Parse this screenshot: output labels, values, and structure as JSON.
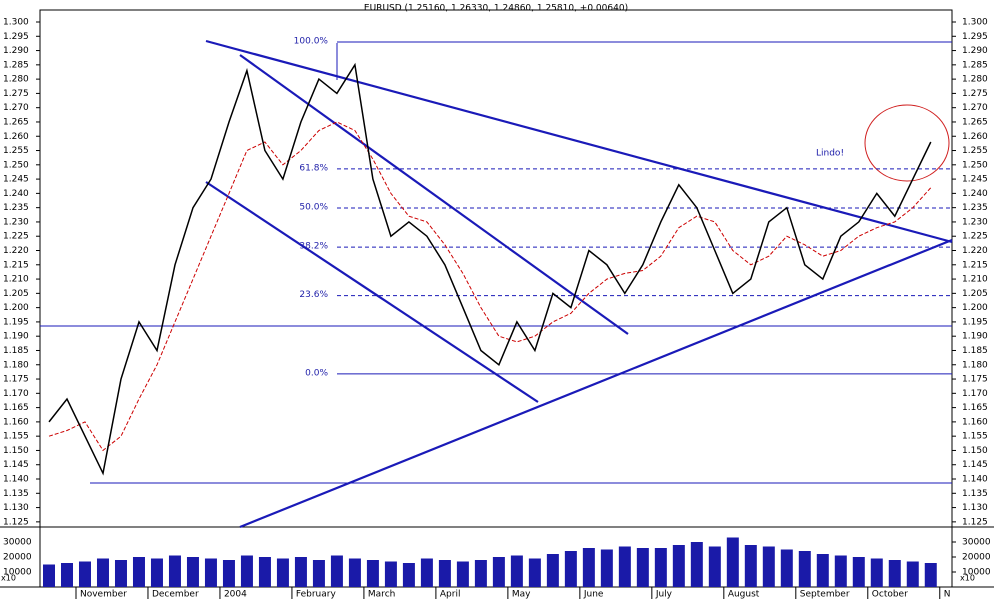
{
  "chart_data": {
    "type": "line",
    "title": "EURUSD (1.25160, 1.26330, 1.24860, 1.25810, +0.00640)",
    "ylim": [
      1.1232,
      1.3042
    ],
    "yticks": [
      {
        "value": 1.125,
        "label": "1.125"
      },
      {
        "value": 1.13,
        "label": "1.130"
      },
      {
        "value": 1.135,
        "label": "1.135"
      },
      {
        "value": 1.14,
        "label": "1.140"
      },
      {
        "value": 1.145,
        "label": "1.145"
      },
      {
        "value": 1.15,
        "label": "1.150"
      },
      {
        "value": 1.155,
        "label": "1.155"
      },
      {
        "value": 1.16,
        "label": "1.160"
      },
      {
        "value": 1.165,
        "label": "1.165"
      },
      {
        "value": 1.17,
        "label": "1.170"
      },
      {
        "value": 1.175,
        "label": "1.175"
      },
      {
        "value": 1.18,
        "label": "1.180"
      },
      {
        "value": 1.185,
        "label": "1.185"
      },
      {
        "value": 1.19,
        "label": "1.190"
      },
      {
        "value": 1.195,
        "label": "1.195"
      },
      {
        "value": 1.2,
        "label": "1.200"
      },
      {
        "value": 1.205,
        "label": "1.205"
      },
      {
        "value": 1.21,
        "label": "1.210"
      },
      {
        "value": 1.215,
        "label": "1.215"
      },
      {
        "value": 1.22,
        "label": "1.220"
      },
      {
        "value": 1.225,
        "label": "1.225"
      },
      {
        "value": 1.23,
        "label": "1.230"
      },
      {
        "value": 1.235,
        "label": "1.235"
      },
      {
        "value": 1.24,
        "label": "1.240"
      },
      {
        "value": 1.245,
        "label": "1.245"
      },
      {
        "value": 1.25,
        "label": "1.250"
      },
      {
        "value": 1.255,
        "label": "1.255"
      },
      {
        "value": 1.26,
        "label": "1.260"
      },
      {
        "value": 1.265,
        "label": "1.265"
      },
      {
        "value": 1.27,
        "label": "1.270"
      },
      {
        "value": 1.275,
        "label": "1.275"
      },
      {
        "value": 1.28,
        "label": "1.280"
      },
      {
        "value": 1.285,
        "label": "1.285"
      },
      {
        "value": 1.29,
        "label": "1.290"
      },
      {
        "value": 1.295,
        "label": "1.295"
      },
      {
        "value": 1.3,
        "label": "1.300"
      }
    ],
    "price_color": "#000000",
    "ma_color": "#cc0000",
    "volume_color": "#1a1aa8",
    "months": [
      {
        "label": null,
        "close": [
          1.16,
          1.168
        ],
        "ma": [
          1.155,
          1.157
        ],
        "volume": [
          15000,
          16000
        ]
      },
      {
        "label": "November",
        "close": [
          1.155,
          1.142,
          1.175,
          1.195
        ],
        "ma": [
          1.16,
          1.15,
          1.155,
          1.168
        ],
        "volume": [
          17000,
          19000,
          18000,
          20000
        ]
      },
      {
        "label": "December",
        "close": [
          1.185,
          1.215,
          1.235,
          1.245
        ],
        "ma": [
          1.18,
          1.195,
          1.21,
          1.225
        ],
        "volume": [
          19000,
          21000,
          20000,
          19000
        ]
      },
      {
        "label": "2004",
        "close": [
          1.265,
          1.283,
          1.255,
          1.245
        ],
        "ma": [
          1.24,
          1.255,
          1.258,
          1.25
        ],
        "volume": [
          18000,
          21000,
          20000,
          19000
        ]
      },
      {
        "label": "February",
        "close": [
          1.265,
          1.28,
          1.275,
          1.285
        ],
        "ma": [
          1.255,
          1.262,
          1.265,
          1.262
        ],
        "volume": [
          20000,
          18000,
          21000,
          19000
        ]
      },
      {
        "label": "March",
        "close": [
          1.245,
          1.225,
          1.23,
          1.225
        ],
        "ma": [
          1.252,
          1.24,
          1.232,
          1.23
        ],
        "volume": [
          18000,
          17000,
          16000,
          19000
        ]
      },
      {
        "label": "April",
        "close": [
          1.215,
          1.2,
          1.185,
          1.18
        ],
        "ma": [
          1.222,
          1.212,
          1.2,
          1.19
        ],
        "volume": [
          18000,
          17000,
          18000,
          20000
        ]
      },
      {
        "label": "May",
        "close": [
          1.195,
          1.185,
          1.205,
          1.2
        ],
        "ma": [
          1.188,
          1.19,
          1.195,
          1.198
        ],
        "volume": [
          21000,
          19000,
          22000,
          24000
        ]
      },
      {
        "label": "June",
        "close": [
          1.22,
          1.215,
          1.205,
          1.215
        ],
        "ma": [
          1.205,
          1.21,
          1.212,
          1.213
        ],
        "volume": [
          26000,
          25000,
          27000,
          26000
        ]
      },
      {
        "label": "July",
        "close": [
          1.23,
          1.243,
          1.235,
          1.22
        ],
        "ma": [
          1.218,
          1.228,
          1.232,
          1.23
        ],
        "volume": [
          26000,
          28000,
          30000,
          27000
        ]
      },
      {
        "label": "August",
        "close": [
          1.205,
          1.21,
          1.23,
          1.235
        ],
        "ma": [
          1.22,
          1.215,
          1.218,
          1.225
        ],
        "volume": [
          33000,
          28000,
          27000,
          25000
        ]
      },
      {
        "label": "September",
        "close": [
          1.215,
          1.21,
          1.225,
          1.23
        ],
        "ma": [
          1.222,
          1.218,
          1.22,
          1.225
        ],
        "volume": [
          24000,
          22000,
          21000,
          20000
        ]
      },
      {
        "label": "October",
        "close": [
          1.24,
          1.232,
          1.245,
          1.258
        ],
        "ma": [
          1.228,
          1.23,
          1.235,
          1.242
        ],
        "volume": [
          19000,
          18000,
          17000,
          16000
        ]
      },
      {
        "label": "N",
        "close": [],
        "ma": [],
        "volume": []
      }
    ],
    "volume_ylim": [
      0,
      38000
    ],
    "volume_yticks": [
      10000,
      20000,
      30000
    ],
    "volume_unit": "x10",
    "fib_levels": [
      {
        "label": "100.0%",
        "value": 1.293
      },
      {
        "label": "61.8%",
        "value": 1.2486
      },
      {
        "label": "50.0%",
        "value": 1.2349
      },
      {
        "label": "38.2%",
        "value": 1.2212
      },
      {
        "label": "23.6%",
        "value": 1.2042
      },
      {
        "label": "0.0%",
        "value": 1.1768
      }
    ],
    "annotation": "Lindo!"
  }
}
